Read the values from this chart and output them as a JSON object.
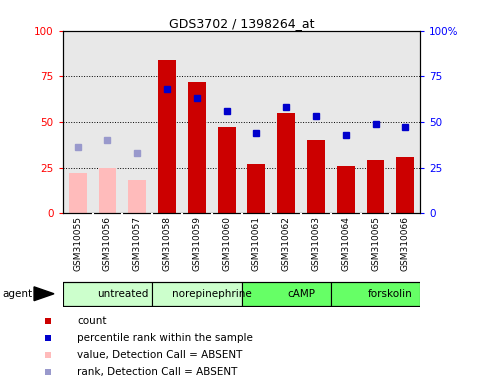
{
  "title": "GDS3702 / 1398264_at",
  "samples": [
    "GSM310055",
    "GSM310056",
    "GSM310057",
    "GSM310058",
    "GSM310059",
    "GSM310060",
    "GSM310061",
    "GSM310062",
    "GSM310063",
    "GSM310064",
    "GSM310065",
    "GSM310066"
  ],
  "bar_values": [
    22,
    25,
    18,
    84,
    72,
    47,
    27,
    55,
    40,
    26,
    29,
    31
  ],
  "bar_absent": [
    true,
    true,
    true,
    false,
    false,
    false,
    false,
    false,
    false,
    false,
    false,
    false
  ],
  "percentile_values": [
    36,
    40,
    33,
    68,
    63,
    56,
    44,
    58,
    53,
    43,
    49,
    47
  ],
  "percentile_absent": [
    true,
    true,
    true,
    false,
    false,
    false,
    false,
    false,
    false,
    false,
    false,
    false
  ],
  "agents": [
    {
      "label": "untreated",
      "start": 0,
      "end": 3,
      "color": "#ccffcc"
    },
    {
      "label": "norepinephrine",
      "start": 3,
      "end": 6,
      "color": "#ccffcc"
    },
    {
      "label": "cAMP",
      "start": 6,
      "end": 9,
      "color": "#66ff66"
    },
    {
      "label": "forskolin",
      "start": 9,
      "end": 12,
      "color": "#66ff66"
    }
  ],
  "ylim": [
    0,
    100
  ],
  "yticks": [
    0,
    25,
    50,
    75,
    100
  ],
  "bar_color_present": "#cc0000",
  "bar_color_absent": "#ffbbbb",
  "percentile_color_present": "#0000cc",
  "percentile_color_absent": "#9999cc",
  "sample_box_color": "#cccccc",
  "legend_items": [
    {
      "color": "#cc0000",
      "label": "count"
    },
    {
      "color": "#0000cc",
      "label": "percentile rank within the sample"
    },
    {
      "color": "#ffbbbb",
      "label": "value, Detection Call = ABSENT"
    },
    {
      "color": "#9999cc",
      "label": "rank, Detection Call = ABSENT"
    }
  ]
}
